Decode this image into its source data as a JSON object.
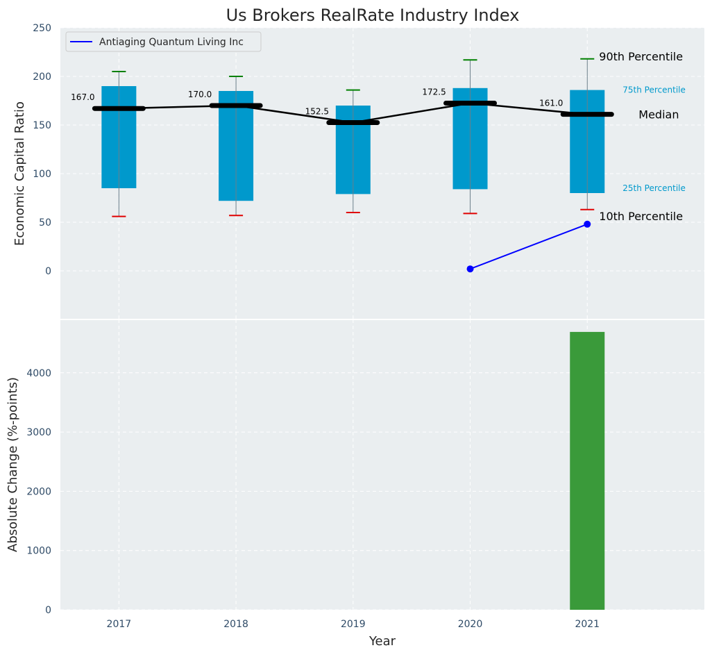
{
  "chart_data": {
    "title": "Us Brokers RealRate Industry Index",
    "top": {
      "type": "box",
      "ylabel": "Economic Capital Ratio",
      "ylim": [
        -50,
        250
      ],
      "yticks": [
        0,
        50,
        100,
        150,
        200,
        250
      ],
      "grid": true,
      "categories": [
        "2017",
        "2018",
        "2019",
        "2020",
        "2021"
      ],
      "boxes": [
        {
          "year": "2017",
          "p10": 56,
          "p25": 85,
          "median": 167.0,
          "p75": 190,
          "p90": 205,
          "median_label": "167.0"
        },
        {
          "year": "2018",
          "p10": 57,
          "p25": 72,
          "median": 170.0,
          "p75": 185,
          "p90": 200,
          "median_label": "170.0"
        },
        {
          "year": "2019",
          "p10": 60,
          "p25": 79,
          "median": 152.5,
          "p75": 170,
          "p90": 186,
          "median_label": "152.5"
        },
        {
          "year": "2020",
          "p10": 59,
          "p25": 84,
          "median": 172.5,
          "p75": 188,
          "p90": 217,
          "median_label": "172.5"
        },
        {
          "year": "2021",
          "p10": 63,
          "p25": 80,
          "median": 161.0,
          "p75": 186,
          "p90": 218,
          "median_label": "161.0"
        }
      ],
      "series": [
        {
          "name": "Antiaging Quantum Living Inc",
          "x": [
            "2020",
            "2021"
          ],
          "values": [
            2,
            48
          ],
          "color": "#0000ff"
        }
      ],
      "legend": {
        "placement": "top-left",
        "label": "Antiaging Quantum Living Inc"
      },
      "annotations": {
        "p90": "90th Percentile",
        "p75": "75th Percentile",
        "median": "Median",
        "p25": "25th Percentile",
        "p10": "10th Percentile"
      },
      "colors": {
        "box": "#0099cc",
        "median_line": "#000000",
        "p90_cap": "#008000",
        "p10_cap": "#e00000",
        "series": "#0000ff",
        "annot_small": "#0099cc"
      }
    },
    "bottom": {
      "type": "bar",
      "xlabel": "Year",
      "ylabel": "Absolute Change (%-points)",
      "ylim": [
        0,
        4900
      ],
      "yticks": [
        0,
        1000,
        2000,
        3000,
        4000
      ],
      "categories": [
        "2017",
        "2018",
        "2019",
        "2020",
        "2021"
      ],
      "values": [
        null,
        null,
        null,
        null,
        4690
      ],
      "bar_color": "#3a9a3a",
      "grid": true
    }
  }
}
